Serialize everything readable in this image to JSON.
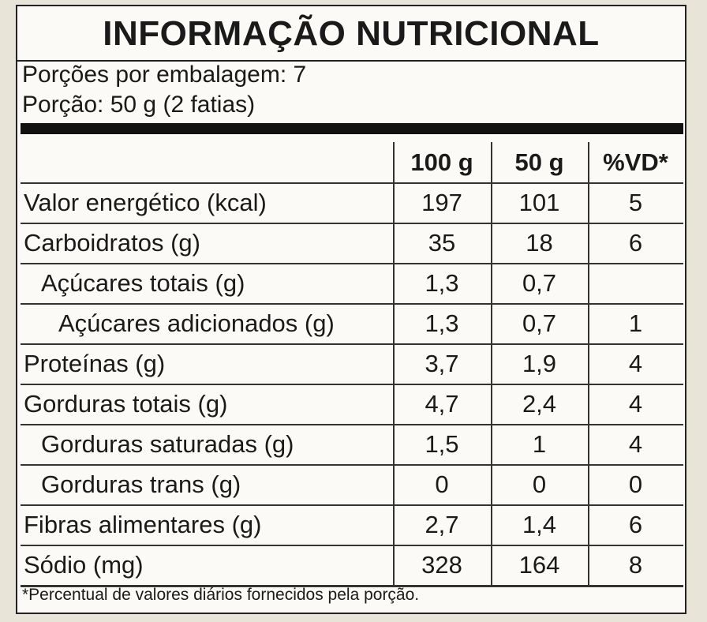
{
  "header": {
    "title": "INFORMAÇÃO NUTRICIONAL",
    "servings_per_package": "Porções por embalagem: 7",
    "serving_size": "Porção: 50 g (2 fatias)"
  },
  "table": {
    "columns": [
      "100 g",
      "50 g",
      "%VD*"
    ],
    "rows": [
      [
        "Valor energético (kcal)",
        "197",
        "101",
        "5"
      ],
      [
        "Carboidratos (g)",
        "35",
        "18",
        "6"
      ],
      [
        "Açúcares totais (g)",
        "1,3",
        "0,7",
        null
      ],
      [
        "Açúcares adicionados (g)",
        "1,3",
        "0,7",
        "1"
      ],
      [
        "Proteínas (g)",
        "3,7",
        "1,9",
        "4"
      ],
      [
        "Gorduras totais (g)",
        "4,7",
        "2,4",
        "4"
      ],
      [
        "Gorduras saturadas (g)",
        "1,5",
        "1",
        "4"
      ],
      [
        "Gorduras trans (g)",
        "0",
        "0",
        "0"
      ],
      [
        "Fibras alimentares (g)",
        "2,7",
        "1,4",
        "6"
      ],
      [
        "Sódio (mg)",
        "328",
        "164",
        "8"
      ]
    ]
  },
  "footnote": "*Percentual de valores diários fornecidos pela porção."
}
